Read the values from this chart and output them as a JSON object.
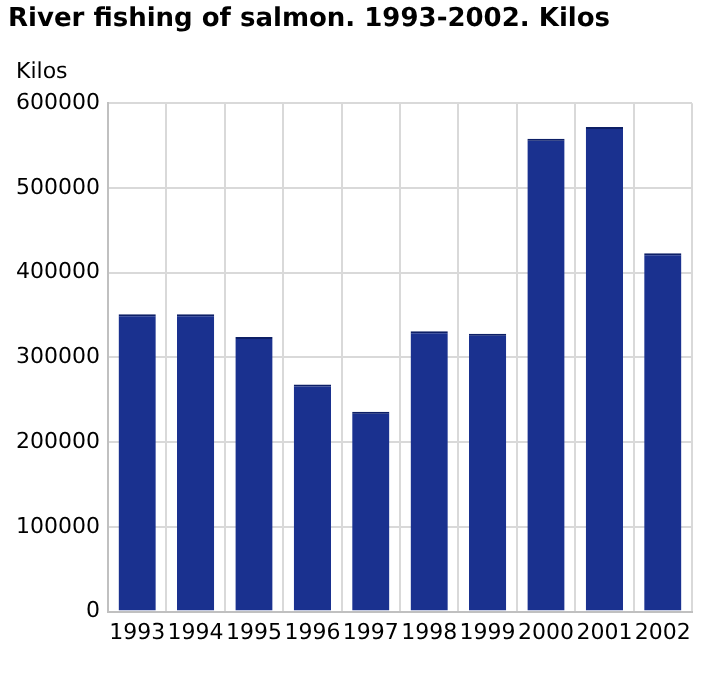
{
  "chart_data": {
    "type": "bar",
    "title": "River fishing of salmon. 1993-2002. Kilos",
    "ylabel": "Kilos",
    "categories": [
      "1993",
      "1994",
      "1995",
      "1996",
      "1997",
      "1998",
      "1999",
      "2000",
      "2001",
      "2002"
    ],
    "values": [
      351000,
      351000,
      324000,
      268000,
      236000,
      331000,
      328000,
      558000,
      572000,
      423000
    ],
    "color": "#1a318f",
    "ylim": [
      0,
      600000
    ],
    "yticks": [
      0,
      100000,
      200000,
      300000,
      400000,
      500000,
      600000
    ],
    "grid": true
  }
}
